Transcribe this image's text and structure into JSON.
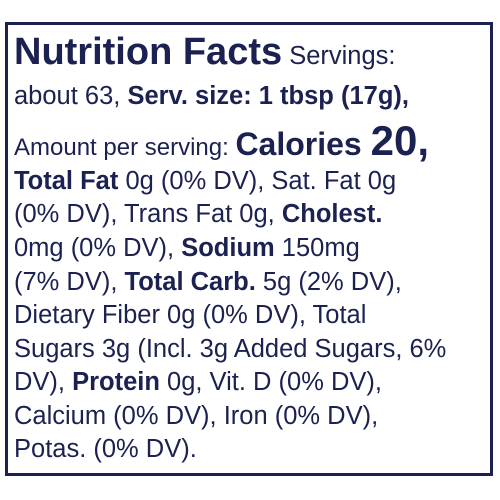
{
  "label": {
    "lines": [
      [
        "Nutrition Facts",
        " Servings:"
      ],
      [
        "about 63, ",
        "Serv. size: 1 tbsp (17g),"
      ],
      [
        "Amount per serving: ",
        "Calories ",
        "20,"
      ],
      [
        "Total Fat",
        " 0g (0% DV), Sat. Fat 0g"
      ],
      [
        "(0% DV), Trans Fat 0g, ",
        "Cholest."
      ],
      [
        "0mg (0% DV), ",
        "Sodium",
        " 150mg"
      ],
      [
        "(7% DV), ",
        "Total Carb.",
        " 5g (2% DV),"
      ],
      [
        "Dietary Fiber 0g (0% DV), Total"
      ],
      [
        "Sugars 3g (Incl. 3g Added Sugars, 6%"
      ],
      [
        "DV), ",
        "Protein",
        " 0g, Vit. D (0% DV),"
      ],
      [
        "Calcium (0% DV), Iron (0% DV),"
      ],
      [
        "Potas. (0% DV)."
      ]
    ]
  }
}
